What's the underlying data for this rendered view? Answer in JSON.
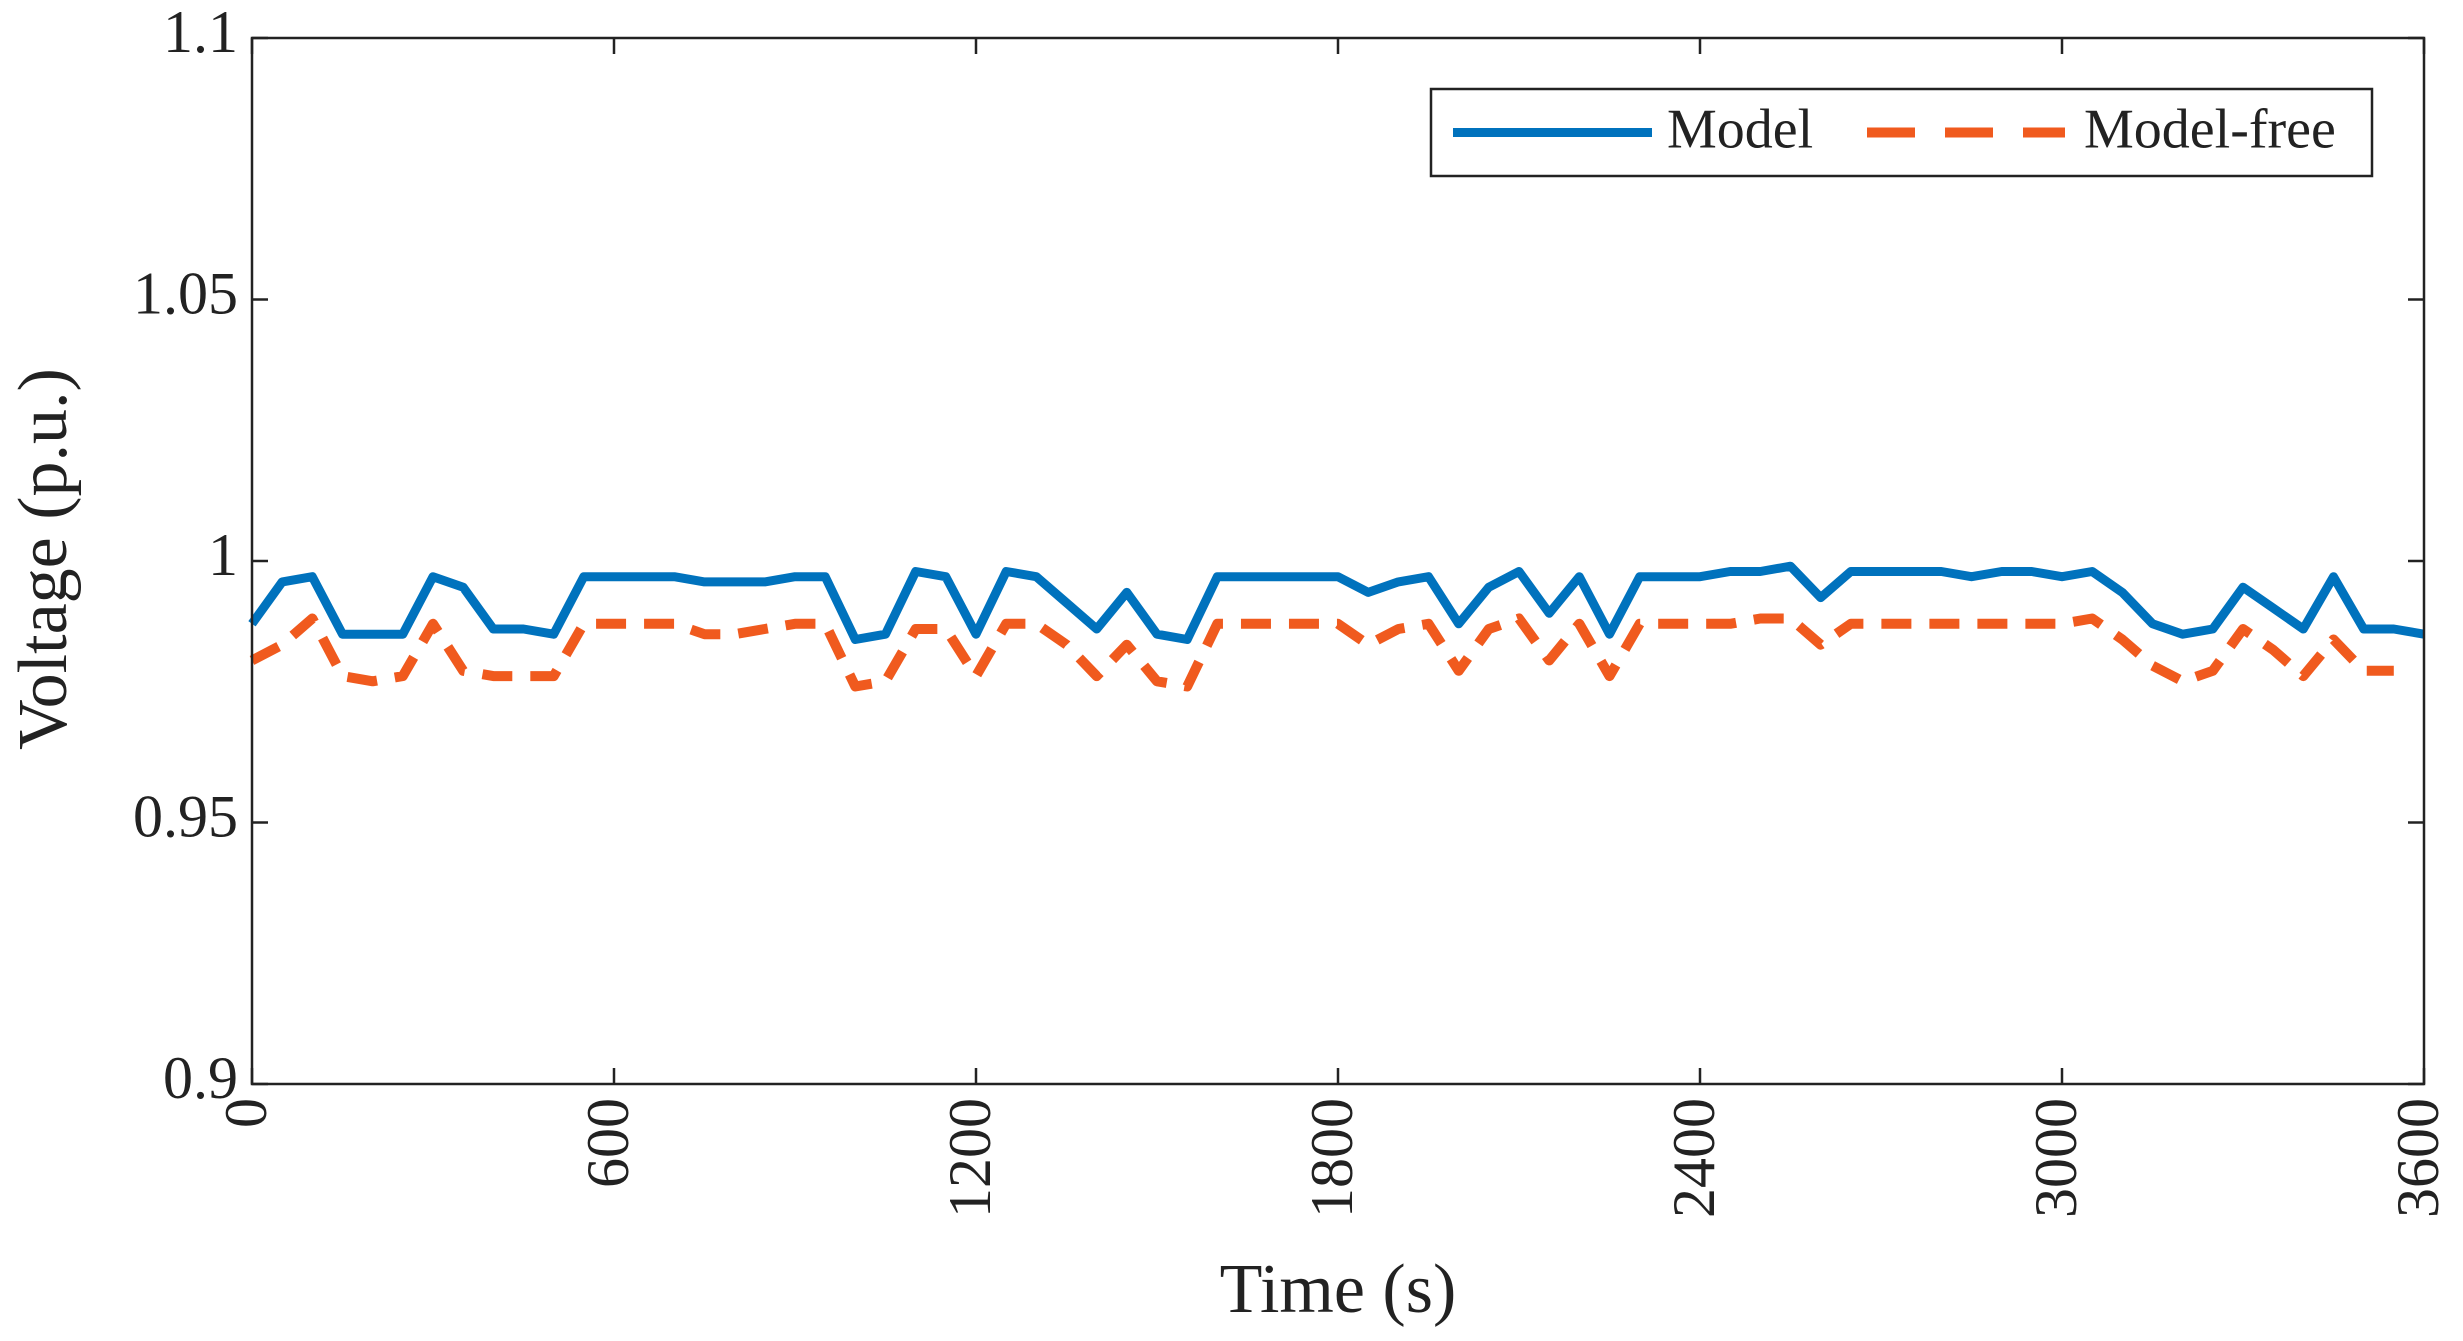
{
  "chart_data": {
    "type": "line",
    "xlabel": "Time (s)",
    "ylabel": "Voltage (p.u.)",
    "x": [
      0,
      50,
      100,
      150,
      200,
      250,
      300,
      350,
      400,
      450,
      500,
      550,
      600,
      650,
      700,
      750,
      800,
      850,
      900,
      950,
      1000,
      1050,
      1100,
      1150,
      1200,
      1250,
      1300,
      1350,
      1400,
      1450,
      1500,
      1550,
      1600,
      1650,
      1700,
      1750,
      1800,
      1850,
      1900,
      1950,
      2000,
      2050,
      2100,
      2150,
      2200,
      2250,
      2300,
      2350,
      2400,
      2450,
      2500,
      2550,
      2600,
      2650,
      2700,
      2750,
      2800,
      2850,
      2900,
      2950,
      3000,
      3050,
      3100,
      3150,
      3200,
      3250,
      3300,
      3350,
      3400,
      3450,
      3500,
      3550,
      3600
    ],
    "series": [
      {
        "name": "Model",
        "color": "#0072bd",
        "dashed": false,
        "values": [
          0.988,
          0.996,
          0.997,
          0.986,
          0.986,
          0.986,
          0.997,
          0.995,
          0.987,
          0.987,
          0.986,
          0.997,
          0.997,
          0.997,
          0.997,
          0.996,
          0.996,
          0.996,
          0.997,
          0.997,
          0.985,
          0.986,
          0.998,
          0.997,
          0.986,
          0.998,
          0.997,
          0.992,
          0.987,
          0.994,
          0.986,
          0.985,
          0.997,
          0.997,
          0.997,
          0.997,
          0.997,
          0.994,
          0.996,
          0.997,
          0.988,
          0.995,
          0.998,
          0.99,
          0.997,
          0.986,
          0.997,
          0.997,
          0.997,
          0.998,
          0.998,
          0.999,
          0.993,
          0.998,
          0.998,
          0.998,
          0.998,
          0.997,
          0.998,
          0.998,
          0.997,
          0.998,
          0.994,
          0.988,
          0.986,
          0.987,
          0.995,
          0.991,
          0.987,
          0.997,
          0.987,
          0.987,
          0.986
        ]
      },
      {
        "name": "Model-free",
        "color": "#f05a1e",
        "dashed": true,
        "values": [
          0.981,
          0.984,
          0.989,
          0.978,
          0.977,
          0.978,
          0.988,
          0.979,
          0.978,
          0.978,
          0.978,
          0.988,
          0.988,
          0.988,
          0.988,
          0.986,
          0.986,
          0.987,
          0.988,
          0.988,
          0.976,
          0.977,
          0.987,
          0.987,
          0.978,
          0.988,
          0.988,
          0.984,
          0.978,
          0.984,
          0.977,
          0.976,
          0.988,
          0.988,
          0.988,
          0.988,
          0.988,
          0.984,
          0.987,
          0.988,
          0.979,
          0.987,
          0.989,
          0.981,
          0.988,
          0.978,
          0.988,
          0.988,
          0.988,
          0.988,
          0.989,
          0.989,
          0.984,
          0.988,
          0.988,
          0.988,
          0.988,
          0.988,
          0.988,
          0.988,
          0.988,
          0.989,
          0.985,
          0.98,
          0.977,
          0.979,
          0.987,
          0.983,
          0.978,
          0.985,
          0.979,
          0.979,
          null
        ]
      }
    ],
    "xlim": [
      0,
      3600
    ],
    "xticks": [
      0,
      600,
      1200,
      1800,
      2400,
      3000,
      3600
    ],
    "ylim": [
      0.9,
      1.1
    ],
    "yticks": [
      0.9,
      0.95,
      1,
      1.05,
      1.1
    ],
    "grid": false,
    "legend": "upper right"
  }
}
